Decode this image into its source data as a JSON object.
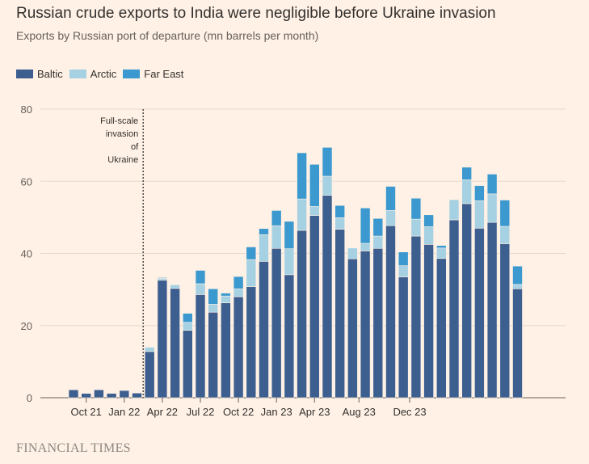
{
  "header": {
    "title": "Russian crude exports to India were negligible before Ukraine invasion",
    "subtitle": "Exports by Russian port of departure (mn barrels per month)"
  },
  "footer": {
    "source": "FINANCIAL TIMES"
  },
  "annotation": {
    "lines": [
      "Full-scale",
      "invasion",
      "of",
      "Ukraine"
    ]
  },
  "colors": {
    "Baltic": "#3D5F8F",
    "Arctic": "#A6D1E3",
    "Far East": "#3B99CF"
  },
  "chart_data": {
    "type": "bar",
    "stacked": true,
    "ylim": [
      0,
      80
    ],
    "yticks": [
      0,
      20,
      40,
      60,
      80
    ],
    "grid": true,
    "legend": "top-left",
    "x_tick_labels": [
      {
        "index": 1,
        "label": "Oct 21"
      },
      {
        "index": 4,
        "label": "Jan 22"
      },
      {
        "index": 7,
        "label": "Apr 22"
      },
      {
        "index": 10,
        "label": "Jul 22"
      },
      {
        "index": 13,
        "label": "Oct 22"
      },
      {
        "index": 16,
        "label": "Jan 23"
      },
      {
        "index": 19,
        "label": "Apr 23"
      },
      {
        "index": 22.5,
        "label": "Aug 23"
      },
      {
        "index": 26.5,
        "label": "Dec 23"
      }
    ],
    "invasion_index": 5.5,
    "series": [
      {
        "name": "Baltic",
        "values": [
          2.2,
          1.2,
          2.2,
          1.2,
          2.0,
          1.3,
          12.8,
          32.6,
          30.3,
          18.7,
          28.6,
          23.7,
          26.3,
          28.0,
          30.8,
          37.8,
          41.4,
          34.1,
          46.4,
          50.5,
          56.1,
          46.7,
          38.5,
          40.7,
          41.4,
          47.7,
          33.5,
          44.8,
          42.5,
          38.6,
          49.3,
          53.8,
          47.0,
          48.6,
          42.7,
          30.2
        ]
      },
      {
        "name": "Arctic",
        "values": [
          0,
          0,
          0,
          0,
          0,
          0,
          1.2,
          0.5,
          1.0,
          2.2,
          3.0,
          2.2,
          1.9,
          2.2,
          7.5,
          7.4,
          6.3,
          7.2,
          8.7,
          2.5,
          5.3,
          3.2,
          3.0,
          2.1,
          3.4,
          4.2,
          3.1,
          4.7,
          4.9,
          2.9,
          5.6,
          6.6,
          7.6,
          7.9,
          4.8,
          1.2
        ]
      },
      {
        "name": "Far East",
        "values": [
          0,
          0,
          0,
          0,
          0,
          0,
          0,
          0.2,
          0,
          2.5,
          3.7,
          4.3,
          0.8,
          3.4,
          3.5,
          1.7,
          4.2,
          7.6,
          12.8,
          11.7,
          8.0,
          3.4,
          0,
          9.8,
          4.9,
          6.7,
          3.8,
          5.8,
          3.3,
          0.7,
          0,
          3.5,
          4.2,
          5.5,
          7.3,
          5.1
        ]
      }
    ]
  }
}
